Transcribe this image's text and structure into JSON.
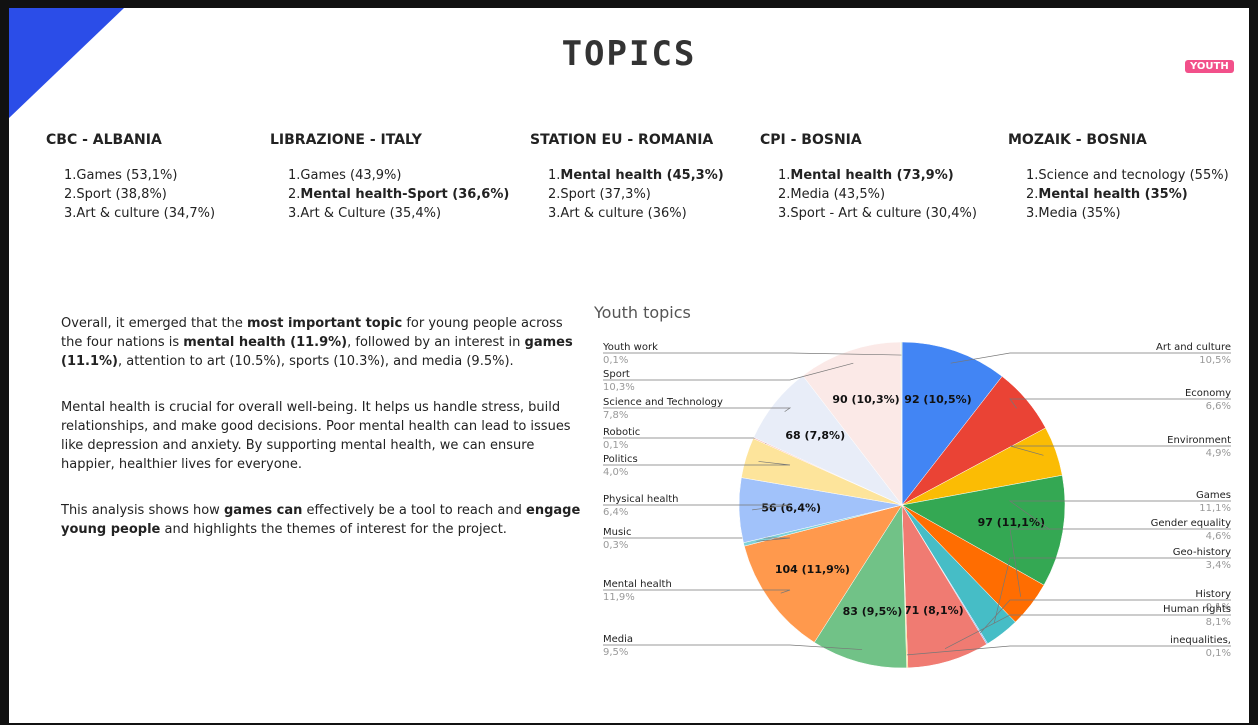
{
  "header": {
    "title": "TOPICS",
    "badge": "YOUTH"
  },
  "columns": [
    {
      "heading": "CBC - ALBANIA",
      "items": [
        {
          "prefix": "1.",
          "text": "Games (53,1%)",
          "bold": false
        },
        {
          "prefix": "2.",
          "text": "Sport (38,8%)",
          "bold": false
        },
        {
          "prefix": "3.",
          "text": "Art & culture (34,7%)",
          "bold": false
        }
      ]
    },
    {
      "heading": "LIBRAZIONE - ITALY",
      "items": [
        {
          "prefix": "1.",
          "text": "Games (43,9%)",
          "bold": false
        },
        {
          "prefix": "2.",
          "text": "Mental health-Sport (36,6%)",
          "bold": true
        },
        {
          "prefix": "3.",
          "text": "Art & Culture (35,4%)",
          "bold": false
        }
      ]
    },
    {
      "heading": "STATION EU -  ROMANIA",
      "items": [
        {
          "prefix": "1.",
          "text": "Mental health (45,3%)",
          "bold": true
        },
        {
          "prefix": "2.",
          "text": "Sport (37,3%)",
          "bold": false
        },
        {
          "prefix": "3.",
          "text": "Art & culture (36%)",
          "bold": false
        }
      ]
    },
    {
      "heading": "CPI - BOSNIA",
      "items": [
        {
          "prefix": "1.",
          "text": "Mental health (73,9%)",
          "bold": true
        },
        {
          "prefix": "2.",
          "text": "Media (43,5%)",
          "bold": false
        },
        {
          "prefix": "3.",
          "text": "Sport - Art & culture (30,4%)",
          "bold": false
        }
      ]
    },
    {
      "heading": "MOZAIK - BOSNIA",
      "items": [
        {
          "prefix": "1.",
          "text": "Science and tecnology (55%)",
          "bold": false
        },
        {
          "prefix": "2.",
          "text": "Mental health (35%)",
          "bold": true
        },
        {
          "prefix": "3.",
          "text": "Media (35%)",
          "bold": false
        }
      ]
    }
  ],
  "paragraphs": [
    [
      {
        "text": "Overall, it emerged that the "
      },
      {
        "text": "most important topic",
        "bold": true
      },
      {
        "text": " for young people across the four nations is "
      },
      {
        "text": "mental health (11.9%)",
        "bold": true
      },
      {
        "text": ", followed by an interest in "
      },
      {
        "text": "games (11.1%)",
        "bold": true
      },
      {
        "text": ", attention to art (10.5%), sports (10.3%), and media (9.5%)."
      }
    ],
    [
      {
        "text": "Mental health is crucial for overall well-being. It helps us handle stress, build relationships, and make good decisions. Poor mental health can lead to issues like depression and anxiety. By supporting mental health, we can ensure happier, healthier lives for everyone."
      }
    ],
    [
      {
        "text": "This analysis shows how "
      },
      {
        "text": "games can",
        "bold": true
      },
      {
        "text": " effectively be a tool to reach and "
      },
      {
        "text": "engage young people",
        "bold": true
      },
      {
        "text": " and highlights the themes of interest for the project."
      }
    ]
  ],
  "chart_data": {
    "type": "pie",
    "title": "Youth topics",
    "categories": [
      "Art and culture",
      "Economy",
      "Environment",
      "Games",
      "Gender equality",
      "Geo-history",
      "History",
      "Human rights",
      "inequalities,",
      "Media",
      "Mental health",
      "Music",
      "Physical health",
      "Politics",
      "Robotic",
      "Science and Technology",
      "Sport",
      "Youth work"
    ],
    "values": [
      92,
      58,
      43,
      97,
      40,
      30,
      1,
      71,
      1,
      83,
      104,
      3,
      56,
      35,
      1,
      68,
      90,
      1
    ],
    "value_labels": [
      "92 (10,5%)",
      null,
      null,
      "97 (11,1%)",
      null,
      null,
      null,
      "71 (8,1%)",
      null,
      "83 (9,5%)",
      "104 (11,9%)",
      null,
      "56 (6,4%)",
      null,
      null,
      "68 (7,8%)",
      "90 (10,3%)",
      null
    ],
    "percent_labels": [
      "10,5%",
      "6,6%",
      "4,9%",
      "11,1%",
      "4,6%",
      "3,4%",
      "0,1%",
      "8,1%",
      "0,1%",
      "9,5%",
      "11,9%",
      "0,3%",
      "6,4%",
      "4,0%",
      "0,1%",
      "7,8%",
      "10,3%",
      "0,1%"
    ],
    "colors": [
      "#4285f4",
      "#ea4335",
      "#fbbc04",
      "#34a853",
      "#ff6d01",
      "#46bdc6",
      "#7baaf7",
      "#f07b72",
      "#fcd04f",
      "#71c287",
      "#ff994d",
      "#7ed1d7",
      "#a1c2fa",
      "#fde49b",
      "#f8b6b1",
      "#e8edf8",
      "#fbe9e7",
      "#cfe8d6"
    ]
  }
}
